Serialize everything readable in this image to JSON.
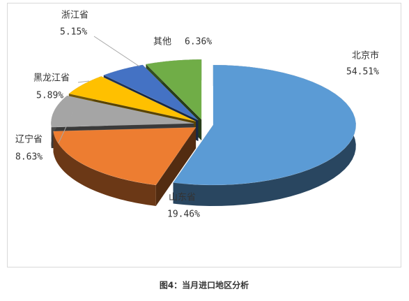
{
  "chart_data": {
    "type": "pie",
    "categories": [
      "北京市",
      "山东省",
      "辽宁省",
      "黑龙江省",
      "浙江省",
      "其他"
    ],
    "values": [
      54.51,
      19.46,
      8.63,
      5.89,
      5.15,
      6.36
    ],
    "value_labels": [
      "54.51%",
      "19.46%",
      "8.63%",
      "5.89%",
      "5.15%",
      "6.36%"
    ],
    "colors": [
      "#5b9bd5",
      "#ed7d31",
      "#a5a5a5",
      "#ffc000",
      "#4472c4",
      "#70ad47"
    ],
    "exploded": true,
    "three_d": true
  },
  "caption": "图4：当月进口地区分析"
}
